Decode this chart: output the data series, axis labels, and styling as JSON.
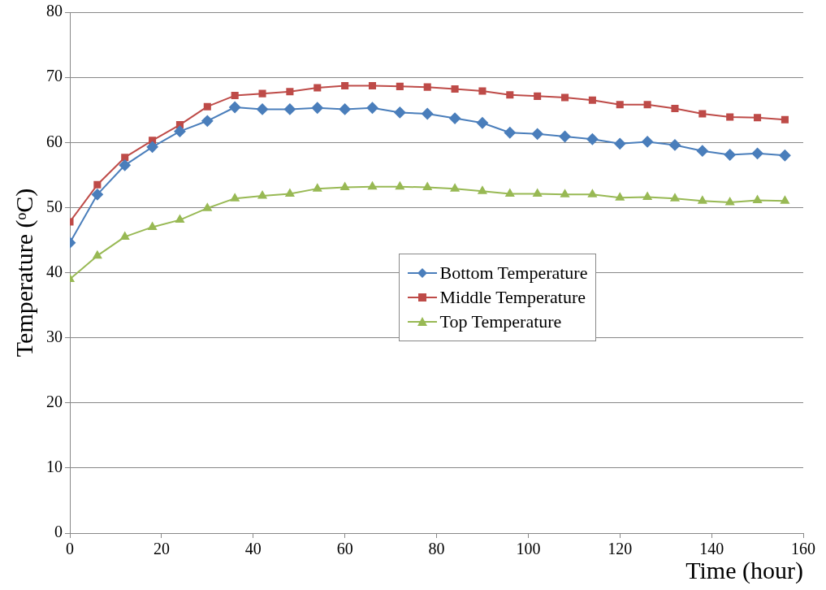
{
  "chart_data": {
    "type": "line",
    "xlabel": "Time (hour)",
    "ylabel": "Temperature (ᵒC)",
    "x": [
      0,
      6,
      12,
      18,
      24,
      30,
      36,
      42,
      48,
      54,
      60,
      66,
      72,
      78,
      84,
      90,
      96,
      102,
      108,
      114,
      120,
      126,
      132,
      138,
      144,
      150,
      156
    ],
    "xlim": [
      0,
      160
    ],
    "xticks": [
      0,
      20,
      40,
      60,
      80,
      100,
      120,
      140,
      160
    ],
    "ylim": [
      0,
      80
    ],
    "yticks": [
      0,
      10,
      20,
      30,
      40,
      50,
      60,
      70,
      80
    ],
    "grid": "y",
    "legend": "center",
    "line_style": "solid",
    "series": [
      {
        "name": "Bottom Temperature",
        "color": "#4a7ebb",
        "marker": "diamond",
        "values": [
          44.6,
          52,
          56.5,
          59.3,
          61.7,
          63.3,
          65.4,
          65.1,
          65.1,
          65.3,
          65.1,
          65.3,
          64.6,
          64.4,
          63.7,
          63,
          61.5,
          61.3,
          60.9,
          60.5,
          59.8,
          60.1,
          59.6,
          58.7,
          58.1,
          58.3,
          58
        ]
      },
      {
        "name": "Middle Temperature",
        "color": "#be4b48",
        "marker": "square",
        "values": [
          47.8,
          53.5,
          57.7,
          60.3,
          62.7,
          65.5,
          67.2,
          67.5,
          67.8,
          68.4,
          68.7,
          68.7,
          68.6,
          68.5,
          68.2,
          67.9,
          67.3,
          67.1,
          66.9,
          66.5,
          65.8,
          65.8,
          65.2,
          64.4,
          63.9,
          63.8,
          63.5
        ]
      },
      {
        "name": "Top Temperature",
        "color": "#98b954",
        "marker": "triangle",
        "values": [
          39,
          42.6,
          45.5,
          47,
          48.1,
          49.9,
          51.4,
          51.8,
          52.1,
          52.9,
          53.1,
          53.2,
          53.2,
          53.1,
          52.9,
          52.5,
          52.1,
          52.1,
          52,
          52,
          51.5,
          51.6,
          51.4,
          51,
          50.8,
          51.1,
          51
        ]
      }
    ]
  }
}
